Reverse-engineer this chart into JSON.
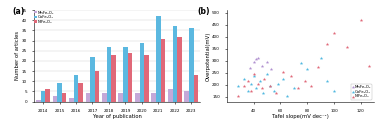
{
  "bar_years": [
    "2014",
    "2015",
    "2016",
    "2017",
    "2018",
    "2019",
    "2020",
    "2021",
    "2022",
    "2023"
  ],
  "MnFe2O4_bars": [
    1,
    3,
    2,
    4,
    4,
    4,
    4,
    4,
    6,
    5
  ],
  "CoFe2O4_bars": [
    5,
    9,
    13,
    22,
    27,
    27,
    29,
    42,
    37,
    36
  ],
  "NiFe2O4_bars": [
    6,
    4,
    9,
    15,
    23,
    24,
    23,
    31,
    32,
    13
  ],
  "bar_colors": {
    "MnFe2O4": "#c4a8d8",
    "CoFe2O4": "#5bb8e0",
    "NiFe2O4": "#e06878"
  },
  "bar_labels": [
    "MnFe₂O₄",
    "CoFe₂O₄",
    "NiFe₂O₄"
  ],
  "ylabel_a": "Number of articles",
  "xlabel_a": "Year of publication",
  "panel_a_label": "(a)",
  "panel_b_label": "(b)",
  "xlabel_b": "Tafel slope(mV dec⁻¹)",
  "ylabel_b": "Overpotential(mV)",
  "xlim_b": [
    20,
    130
  ],
  "ylim_b": [
    130,
    510
  ],
  "yticks_b": [
    150,
    200,
    250,
    300,
    350,
    400,
    450,
    500
  ],
  "xticks_b": [
    40,
    60,
    80,
    100,
    120
  ],
  "scatter_MnFe2O4": {
    "tafel": [
      37,
      40,
      43,
      46,
      50,
      53,
      42
    ],
    "eta": [
      270,
      295,
      310,
      280,
      295,
      265,
      305
    ]
  },
  "scatter_CoFe2O4": {
    "tafel": [
      28,
      33,
      36,
      38,
      40,
      42,
      45,
      47,
      50,
      52,
      55,
      58,
      62,
      65,
      70,
      75,
      80,
      90,
      95,
      100
    ],
    "eta": [
      195,
      225,
      175,
      205,
      235,
      185,
      215,
      165,
      245,
      195,
      175,
      205,
      225,
      155,
      185,
      290,
      265,
      310,
      215,
      175
    ]
  },
  "scatter_NiFe2O4": {
    "tafel": [
      28,
      33,
      36,
      38,
      40,
      43,
      46,
      48,
      52,
      57,
      62,
      68,
      73,
      78,
      83,
      88,
      95,
      100,
      110,
      120,
      126
    ],
    "eta": [
      155,
      195,
      215,
      175,
      245,
      205,
      185,
      225,
      195,
      165,
      255,
      235,
      185,
      215,
      195,
      275,
      370,
      415,
      355,
      470,
      280
    ]
  },
  "scatter_colors": {
    "MnFe2O4": "#b090d0",
    "CoFe2O4": "#50b8e0",
    "NiFe2O4": "#e06878"
  },
  "scatter_labels": [
    "MnFe₂O₄",
    "CoFe₂O₄",
    "NiFe₂O₄"
  ],
  "bar_width": 0.28,
  "ylim_a": [
    0,
    45
  ],
  "yticks_a": [
    0,
    5,
    10,
    15,
    20,
    25,
    30,
    35,
    40,
    45
  ]
}
